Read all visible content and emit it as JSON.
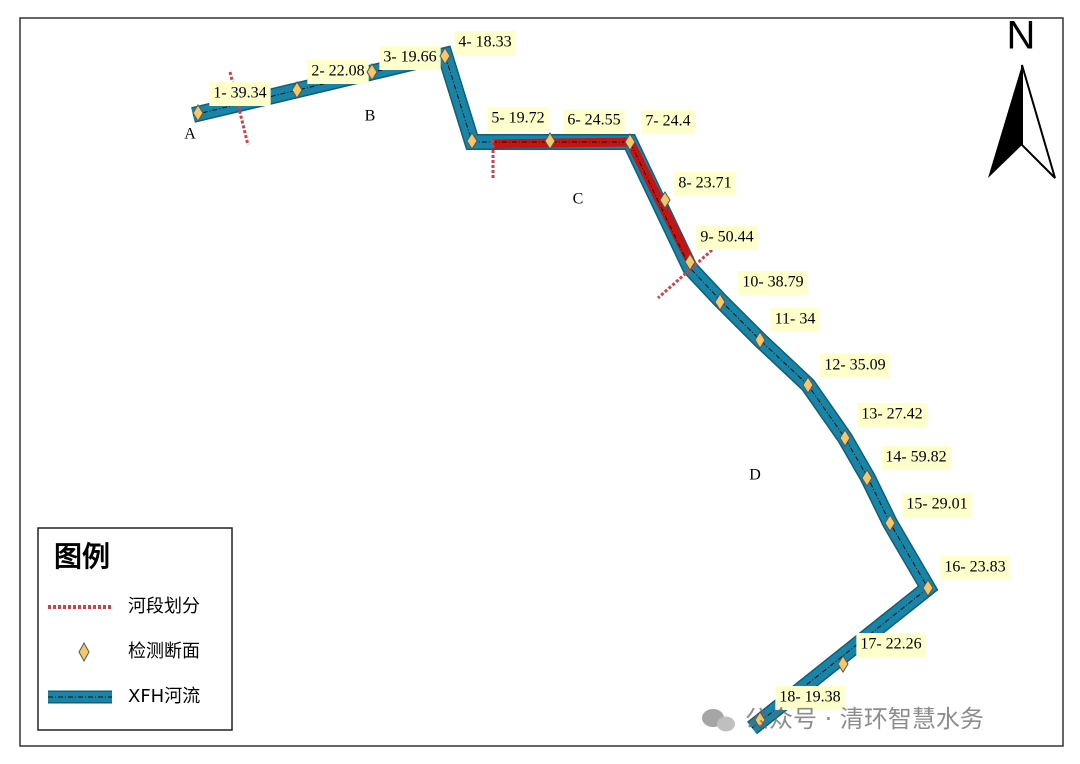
{
  "north": "N",
  "segments": [
    "A",
    "B",
    "C",
    "D"
  ],
  "sections": [
    "1- 39.34",
    "2- 22.08",
    "3- 19.66",
    "4- 18.33",
    "5- 19.72",
    "6- 24.55",
    "7- 24.4",
    "8- 23.71",
    "9- 50.44",
    "10- 38.79",
    "11- 34",
    "12- 35.09",
    "13- 27.42",
    "14- 59.82",
    "15- 29.01",
    "16- 23.83",
    "17- 22.26",
    "18- 19.38"
  ],
  "legend": {
    "title": "图例",
    "items": [
      "河段划分",
      "检测断面",
      "XFH河流"
    ]
  },
  "watermark": "公众号 · 清环智慧水务"
}
